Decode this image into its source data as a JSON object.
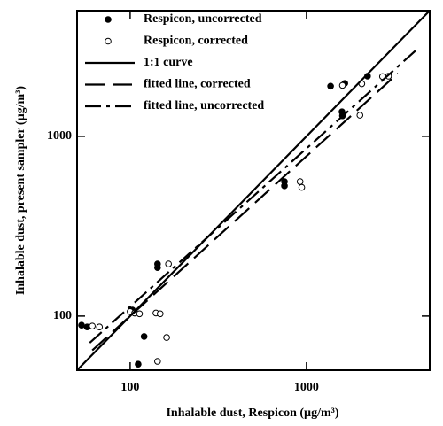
{
  "chart_data": {
    "type": "scatter",
    "xlabel": "Inhalable dust, Respicon (µg/m³)",
    "ylabel": "Inhalable dust, present sampler (µg/m³)",
    "xscale": "log",
    "yscale": "log",
    "xlim": [
      50,
      5000
    ],
    "ylim": [
      50,
      5000
    ],
    "xticks": [
      100,
      1000
    ],
    "yticks": [
      100,
      1000
    ],
    "legend": "upper left",
    "series": [
      {
        "name": "Respicon, uncorrected",
        "color": "#000000",
        "mode": "marker",
        "marker": "filled",
        "x": [
          53,
          57,
          101,
          103,
          106,
          111,
          120,
          143,
          143,
          750,
          750,
          1370,
          1650,
          1590,
          1600,
          2220
        ],
        "y": [
          89,
          87,
          106,
          108,
          104,
          54,
          77,
          186,
          195,
          560,
          530,
          1900,
          1970,
          1370,
          1300,
          2160
        ]
      },
      {
        "name": "Respicon, corrected",
        "color": "#000000",
        "mode": "marker",
        "marker": "open",
        "x": [
          61,
          67,
          100,
          106,
          113,
          140,
          148,
          165,
          161,
          143,
          920,
          940,
          1600,
          2060,
          2010,
          2700,
          2920
        ],
        "y": [
          88,
          87,
          106,
          104,
          103,
          104,
          103,
          195,
          76,
          56,
          560,
          520,
          1920,
          1960,
          1310,
          2150,
          2160
        ]
      },
      {
        "name": "1:1 curve",
        "color": "#000000",
        "mode": "line",
        "dash": "none",
        "x": [
          50,
          5000
        ],
        "y": [
          50,
          5000
        ]
      },
      {
        "name": "fitted line, corrected",
        "color": "#000000",
        "mode": "line",
        "dash": "22,9",
        "x": [
          61,
          3300
        ],
        "y": [
          64.5,
          2240
        ]
      },
      {
        "name": "fitted line, uncorrected",
        "color": "#000000",
        "mode": "line",
        "dash": "18,6,4,6",
        "x": [
          59,
          4150
        ],
        "y": [
          71,
          2990
        ]
      }
    ]
  }
}
